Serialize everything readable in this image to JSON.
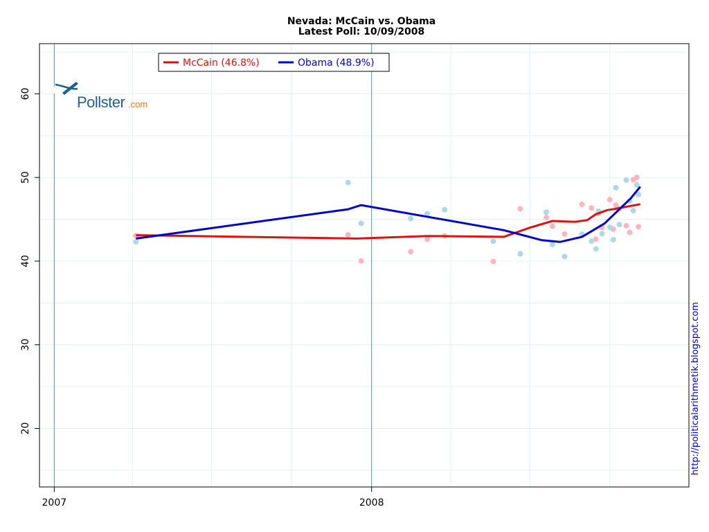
{
  "page": {
    "title_line1": "Nevada: McCain vs. Obama",
    "title_line2": "Latest Poll: 10/09/2008",
    "watermark": "http://politicalarithmetik.blogspot.com",
    "logo_main": "Pollster",
    "logo_suffix": ".com"
  },
  "colors": {
    "mccain_line": "#e01010",
    "obama_line": "#0000cc",
    "mccain_dot": "#ffb6c1",
    "obama_dot": "#add8e6",
    "year_line": "#4a90c8",
    "grid": "#e3f0f0"
  },
  "chart_data": {
    "type": "line",
    "title": "Nevada: McCain vs. Obama",
    "subtitle": "Latest Poll: 10/09/2008",
    "xlabel": "",
    "ylabel": "",
    "x_type": "date",
    "xlim": [
      "2006-12-15",
      "2008-12-31"
    ],
    "ylim": [
      13,
      66
    ],
    "y_ticks": [
      20,
      30,
      40,
      50,
      60
    ],
    "x_ticks": [
      {
        "date": "2007-01-01",
        "label": "2007"
      },
      {
        "date": "2008-01-01",
        "label": "2008"
      }
    ],
    "grid": true,
    "legend_position": "top-left",
    "series": [
      {
        "name": "McCain (46.8%)",
        "color": "#e01010",
        "points": [
          {
            "x": "2007-04-05",
            "y": 43.1
          },
          {
            "x": "2007-12-15",
            "y": 42.7
          },
          {
            "x": "2008-03-05",
            "y": 43.0
          },
          {
            "x": "2008-06-01",
            "y": 42.9
          },
          {
            "x": "2008-07-01",
            "y": 44.0
          },
          {
            "x": "2008-07-27",
            "y": 44.8
          },
          {
            "x": "2008-08-22",
            "y": 44.7
          },
          {
            "x": "2008-09-05",
            "y": 44.9
          },
          {
            "x": "2008-09-15",
            "y": 45.6
          },
          {
            "x": "2008-09-28",
            "y": 46.1
          },
          {
            "x": "2008-10-10",
            "y": 46.3
          },
          {
            "x": "2008-10-25",
            "y": 46.6
          },
          {
            "x": "2008-11-05",
            "y": 46.8
          }
        ]
      },
      {
        "name": "Obama (48.9%)",
        "color": "#0000cc",
        "points": [
          {
            "x": "2007-04-05",
            "y": 42.7
          },
          {
            "x": "2007-12-05",
            "y": 46.2
          },
          {
            "x": "2007-12-20",
            "y": 46.7
          },
          {
            "x": "2008-06-01",
            "y": 43.7
          },
          {
            "x": "2008-07-15",
            "y": 42.5
          },
          {
            "x": "2008-08-05",
            "y": 42.3
          },
          {
            "x": "2008-08-30",
            "y": 42.9
          },
          {
            "x": "2008-09-25",
            "y": 44.5
          },
          {
            "x": "2008-10-10",
            "y": 46.0
          },
          {
            "x": "2008-10-25",
            "y": 47.5
          },
          {
            "x": "2008-11-05",
            "y": 48.9
          }
        ]
      }
    ]
  }
}
